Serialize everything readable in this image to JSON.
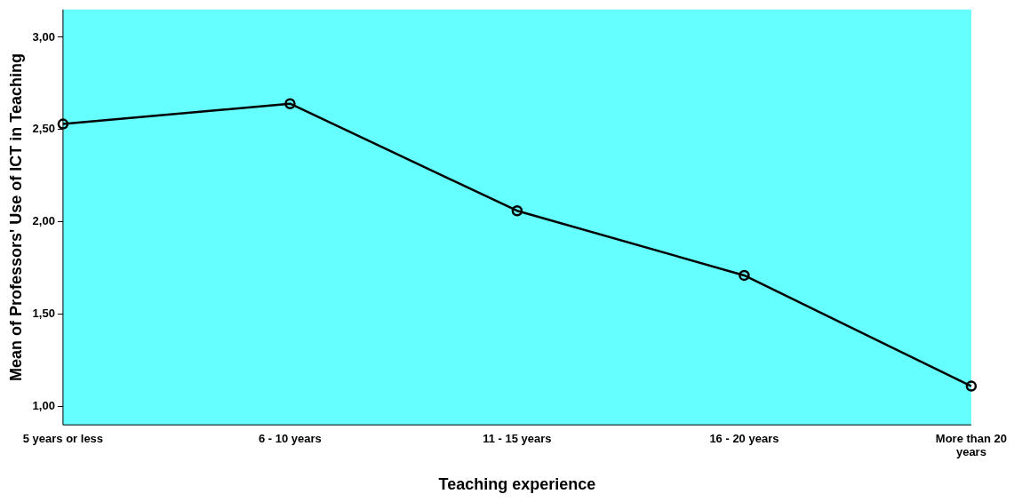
{
  "chart_data": {
    "type": "line",
    "xlabel": "Teaching experience",
    "ylabel": "Mean of Professors' Use of ICT in Teaching",
    "categories": [
      "5 years or less",
      "6 - 10 years",
      "11 - 15 years",
      "16 - 20 years",
      "More than 20 years"
    ],
    "series": [
      {
        "color": "#000000",
        "values": [
          2.53,
          2.64,
          2.06,
          1.71,
          1.11
        ]
      }
    ],
    "ylim": [
      0.9,
      3.15
    ],
    "yticks": [
      {
        "value": 1,
        "label": "1,00"
      },
      {
        "value": 1.5,
        "label": "1,50"
      },
      {
        "value": 2,
        "label": "2,00"
      },
      {
        "value": 2.5,
        "label": "2,50"
      },
      {
        "value": 3,
        "label": "3,00"
      }
    ],
    "grid": false,
    "legend": false,
    "marker": "circle",
    "line_style": "solid"
  }
}
